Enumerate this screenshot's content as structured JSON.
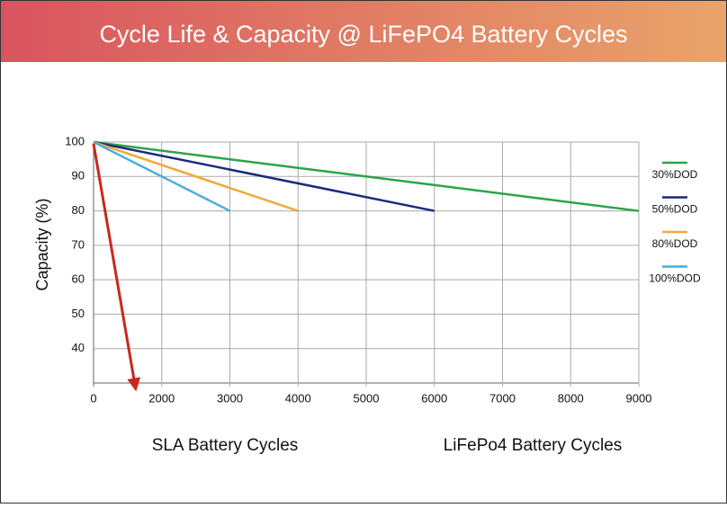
{
  "chart_data": {
    "type": "line",
    "title": "Cycle Life & Capacity @ LiFePO4 Battery Cycles",
    "ylabel": "Capacity (%)",
    "xlim": [
      0,
      9000
    ],
    "xticks": [
      0,
      2000,
      3000,
      4000,
      5000,
      6000,
      7000,
      8000,
      9000
    ],
    "ylim": [
      30,
      100
    ],
    "yticks": [
      40,
      50,
      60,
      70,
      80,
      90,
      100
    ],
    "grid": true,
    "series": [
      {
        "name": "30%DOD",
        "color": "#2ca34a",
        "x": [
          0,
          9000
        ],
        "values": [
          100,
          80
        ]
      },
      {
        "name": "50%DOD",
        "color": "#1c2a7c",
        "x": [
          0,
          6000
        ],
        "values": [
          100,
          80
        ]
      },
      {
        "name": "80%DOD",
        "color": "#f2a93b",
        "x": [
          0,
          4000
        ],
        "values": [
          100,
          80
        ]
      },
      {
        "name": "100%DOD",
        "color": "#4aaedc",
        "x": [
          0,
          3000
        ],
        "values": [
          100,
          80
        ]
      }
    ],
    "annotations": [
      "SLA Battery Cycles",
      "LiFePo4 Battery Cycles"
    ]
  }
}
